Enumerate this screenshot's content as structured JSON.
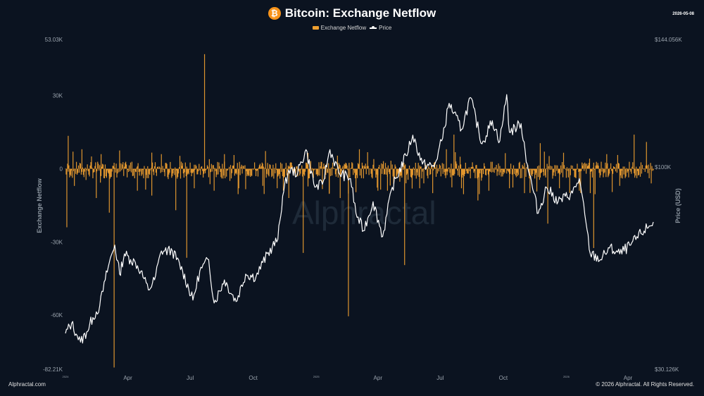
{
  "header": {
    "coin_symbol": "₿",
    "title": "Bitcoin: Exchange Netflow",
    "date": "2026-05-08"
  },
  "legend": {
    "items": [
      {
        "label": "Exchange Netflow",
        "color": "#f0a030"
      },
      {
        "label": "Price",
        "color": "#ffffff"
      }
    ]
  },
  "footer": {
    "left": "Alphractal.com",
    "right": "© 2026 Alphractal. All Rights Reserved."
  },
  "watermark": "Alphractal",
  "chart_data": {
    "type": "bar+line",
    "title": "Bitcoin: Exchange Netflow",
    "y_left_label": "Exchange Netflow",
    "y_right_label": "Price (USD)",
    "y_left_range": [
      -82210,
      53030
    ],
    "y_right_range": [
      30126,
      144056
    ],
    "y_left_ticks": [
      {
        "value": 53030,
        "label": "53.03K"
      },
      {
        "value": 30000,
        "label": "30K"
      },
      {
        "value": 0,
        "label": "0"
      },
      {
        "value": -30000,
        "label": "-30K"
      },
      {
        "value": -60000,
        "label": "-60K"
      },
      {
        "value": -82210,
        "label": "-82.21K"
      }
    ],
    "y_right_ticks": [
      {
        "value": 144056,
        "label": "$144.056K"
      },
      {
        "value": 100000,
        "label": "$100K"
      },
      {
        "value": 30126,
        "label": "$30.126K"
      }
    ],
    "x_ticks": [
      {
        "date": "2024-01-01",
        "label": "2024",
        "small": true
      },
      {
        "date": "2024-04-01",
        "label": "Apr"
      },
      {
        "date": "2024-07-01",
        "label": "Jul"
      },
      {
        "date": "2024-10-01",
        "label": "Oct"
      },
      {
        "date": "2025-01-01",
        "label": "2025",
        "small": true
      },
      {
        "date": "2025-04-01",
        "label": "Apr"
      },
      {
        "date": "2025-07-01",
        "label": "Jul"
      },
      {
        "date": "2025-10-01",
        "label": "Oct"
      },
      {
        "date": "2026-01-01",
        "label": "2026",
        "small": true
      },
      {
        "date": "2026-04-01",
        "label": "Apr"
      }
    ],
    "x_range": [
      "2024-01-01",
      "2026-05-08"
    ],
    "price_series": {
      "name": "Price",
      "points": [
        [
          "2024-01-01",
          42500
        ],
        [
          "2024-01-10",
          46000
        ],
        [
          "2024-01-18",
          41800
        ],
        [
          "2024-01-23",
          39500
        ],
        [
          "2024-02-01",
          43000
        ],
        [
          "2024-02-10",
          48000
        ],
        [
          "2024-02-20",
          52000
        ],
        [
          "2024-02-28",
          61000
        ],
        [
          "2024-03-05",
          67000
        ],
        [
          "2024-03-13",
          73000
        ],
        [
          "2024-03-20",
          63000
        ],
        [
          "2024-03-27",
          70000
        ],
        [
          "2024-04-05",
          68000
        ],
        [
          "2024-04-12",
          67000
        ],
        [
          "2024-04-20",
          64000
        ],
        [
          "2024-05-01",
          57500
        ],
        [
          "2024-05-10",
          61000
        ],
        [
          "2024-05-20",
          71000
        ],
        [
          "2024-06-05",
          71000
        ],
        [
          "2024-06-20",
          64000
        ],
        [
          "2024-07-05",
          54000
        ],
        [
          "2024-07-15",
          64000
        ],
        [
          "2024-07-28",
          68000
        ],
        [
          "2024-08-05",
          53000
        ],
        [
          "2024-08-20",
          61000
        ],
        [
          "2024-09-06",
          53500
        ],
        [
          "2024-09-20",
          63000
        ],
        [
          "2024-10-05",
          62000
        ],
        [
          "2024-10-15",
          67000
        ],
        [
          "2024-10-29",
          72500
        ],
        [
          "2024-11-06",
          75000
        ],
        [
          "2024-11-13",
          90000
        ],
        [
          "2024-11-22",
          99000
        ],
        [
          "2024-12-05",
          98000
        ],
        [
          "2024-12-17",
          106000
        ],
        [
          "2024-12-30",
          93000
        ],
        [
          "2025-01-10",
          94000
        ],
        [
          "2025-01-21",
          106000
        ],
        [
          "2025-02-03",
          98000
        ],
        [
          "2025-02-20",
          96000
        ],
        [
          "2025-02-28",
          84000
        ],
        [
          "2025-03-11",
          78000
        ],
        [
          "2025-03-25",
          88000
        ],
        [
          "2025-04-08",
          76000
        ],
        [
          "2025-04-22",
          93000
        ],
        [
          "2025-05-12",
          104000
        ],
        [
          "2025-05-22",
          111000
        ],
        [
          "2025-06-05",
          101000
        ],
        [
          "2025-06-22",
          100000
        ],
        [
          "2025-07-03",
          109000
        ],
        [
          "2025-07-14",
          122000
        ],
        [
          "2025-08-01",
          113000
        ],
        [
          "2025-08-14",
          124000
        ],
        [
          "2025-08-31",
          108000
        ],
        [
          "2025-09-15",
          116000
        ],
        [
          "2025-09-26",
          109000
        ],
        [
          "2025-10-06",
          125000
        ],
        [
          "2025-10-10",
          112000
        ],
        [
          "2025-10-27",
          115000
        ],
        [
          "2025-11-05",
          101000
        ],
        [
          "2025-11-21",
          84000
        ],
        [
          "2025-12-03",
          93000
        ],
        [
          "2025-12-20",
          88000
        ],
        [
          "2026-01-10",
          91000
        ],
        [
          "2026-01-20",
          96000
        ],
        [
          "2026-02-05",
          70000
        ],
        [
          "2026-02-20",
          68000
        ],
        [
          "2026-03-05",
          72000
        ],
        [
          "2026-03-20",
          70000
        ],
        [
          "2026-04-05",
          73000
        ],
        [
          "2026-04-20",
          77000
        ],
        [
          "2026-05-08",
          81000
        ]
      ]
    },
    "netflow_series": {
      "name": "Exchange Netflow",
      "spikes": [
        [
          "2024-01-03",
          -24000
        ],
        [
          "2024-01-05",
          13500
        ],
        [
          "2024-01-25",
          8000
        ],
        [
          "2024-02-15",
          -12000
        ],
        [
          "2024-02-22",
          6000
        ],
        [
          "2024-03-05",
          -18000
        ],
        [
          "2024-03-12",
          -81500
        ],
        [
          "2024-03-20",
          7500
        ],
        [
          "2024-04-15",
          -9000
        ],
        [
          "2024-05-06",
          -11000
        ],
        [
          "2024-05-20",
          6000
        ],
        [
          "2024-06-10",
          -17000
        ],
        [
          "2024-06-26",
          -36500
        ],
        [
          "2024-07-07",
          -8000
        ],
        [
          "2024-07-22",
          47000
        ],
        [
          "2024-08-05",
          -9000
        ],
        [
          "2024-08-20",
          6000
        ],
        [
          "2024-09-10",
          -8000
        ],
        [
          "2024-10-15",
          -7000
        ],
        [
          "2024-11-05",
          -8000
        ],
        [
          "2024-11-22",
          -12000
        ],
        [
          "2024-12-13",
          -34500
        ],
        [
          "2024-12-20",
          6500
        ],
        [
          "2025-01-20",
          -10000
        ],
        [
          "2025-02-05",
          -12000
        ],
        [
          "2025-02-17",
          -60500
        ],
        [
          "2025-03-05",
          8000
        ],
        [
          "2025-04-01",
          -9000
        ],
        [
          "2025-04-15",
          -9000
        ],
        [
          "2025-05-10",
          -39500
        ],
        [
          "2025-06-01",
          -8000
        ],
        [
          "2025-06-20",
          -10000
        ],
        [
          "2025-07-10",
          8000
        ],
        [
          "2025-07-21",
          14000
        ],
        [
          "2025-08-01",
          -8000
        ],
        [
          "2025-08-25",
          -13000
        ],
        [
          "2025-09-10",
          -9000
        ],
        [
          "2025-10-10",
          -8000
        ],
        [
          "2025-11-01",
          -10000
        ],
        [
          "2025-11-24",
          10500
        ],
        [
          "2025-12-05",
          -22500
        ],
        [
          "2025-12-22",
          -8000
        ],
        [
          "2026-01-20",
          -9000
        ],
        [
          "2026-02-05",
          -10000
        ],
        [
          "2026-02-10",
          -32500
        ],
        [
          "2026-03-01",
          6000
        ],
        [
          "2026-03-20",
          -7000
        ],
        [
          "2026-04-10",
          14000
        ],
        [
          "2026-04-28",
          11000
        ],
        [
          "2026-05-05",
          -6000
        ]
      ]
    }
  }
}
